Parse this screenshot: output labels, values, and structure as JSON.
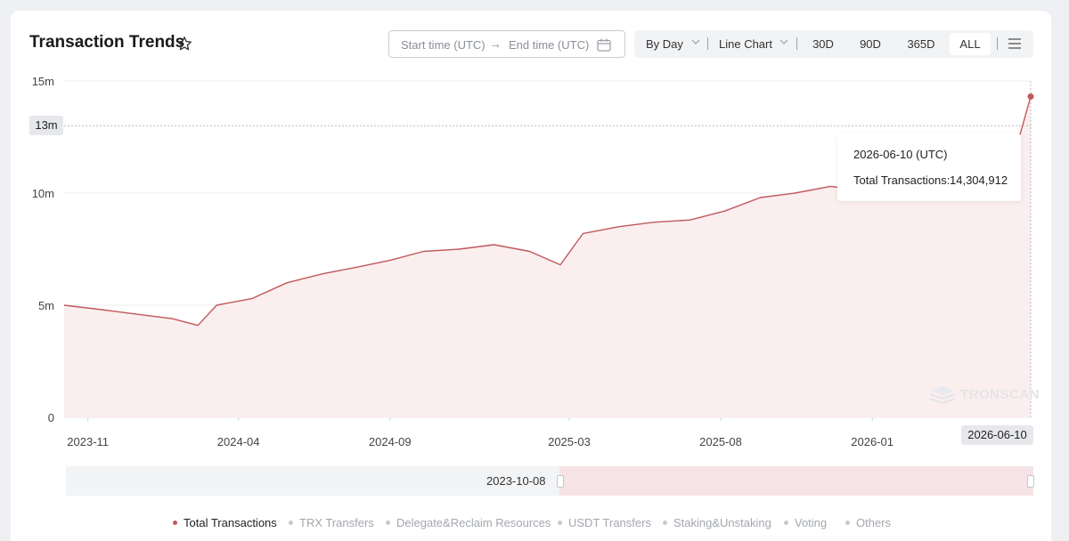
{
  "header": {
    "title": "Transaction Trends",
    "start_placeholder": "Start time (UTC)",
    "end_placeholder": "End time (UTC)"
  },
  "toolbar": {
    "granularity": "By Day",
    "chart_type": "Line Chart",
    "ranges": [
      "30D",
      "90D",
      "365D",
      "ALL"
    ],
    "active_range": "ALL"
  },
  "crosshair": {
    "y_label": "13m",
    "x_label": "2026-06-10"
  },
  "tooltip": {
    "date": "2026-06-10 (UTC)",
    "label": "Total Transactions:",
    "value": "14,304,912"
  },
  "watermark": "TRONSCAN",
  "zoom": {
    "start_label": "2023-10-08"
  },
  "legend": [
    {
      "name": "Total Transactions",
      "active": true
    },
    {
      "name": "TRX Transfers",
      "active": false
    },
    {
      "name": "Delegate&Reclaim Resources",
      "active": false
    },
    {
      "name": "USDT Transfers",
      "active": false
    },
    {
      "name": "Staking&Unstaking",
      "active": false
    },
    {
      "name": "Voting",
      "active": false
    },
    {
      "name": "Others",
      "active": false
    }
  ],
  "colors": {
    "series": "#c0585c",
    "fill": "#fbeeee",
    "grid": "#eceef1"
  },
  "chart_data": {
    "type": "line",
    "title": "Transaction Trends",
    "ylim": [
      0,
      15000000
    ],
    "y_ticks": [
      "0",
      "5m",
      "10m",
      "15m"
    ],
    "x_ticks": [
      "2023-11",
      "2024-04",
      "2024-09",
      "2025-03",
      "2025-08",
      "2026-01"
    ],
    "x_range": [
      "2023-10-08",
      "2026-06-10"
    ],
    "grid": "horizontal",
    "legend_position": "bottom",
    "series": [
      {
        "name": "Total Transactions",
        "points": [
          [
            "2023-10-08",
            5000000
          ],
          [
            "2023-11-15",
            4800000
          ],
          [
            "2023-12-20",
            4600000
          ],
          [
            "2024-01-25",
            4400000
          ],
          [
            "2024-02-20",
            4100000
          ],
          [
            "2024-03-10",
            5000000
          ],
          [
            "2024-04-15",
            5300000
          ],
          [
            "2024-05-20",
            6000000
          ],
          [
            "2024-06-25",
            6400000
          ],
          [
            "2024-07-30",
            6700000
          ],
          [
            "2024-09-01",
            7000000
          ],
          [
            "2024-10-05",
            7400000
          ],
          [
            "2024-11-10",
            7500000
          ],
          [
            "2024-12-15",
            7700000
          ],
          [
            "2025-01-20",
            7400000
          ],
          [
            "2025-02-20",
            6800000
          ],
          [
            "2025-03-15",
            8200000
          ],
          [
            "2025-04-20",
            8500000
          ],
          [
            "2025-05-25",
            8700000
          ],
          [
            "2025-07-01",
            8800000
          ],
          [
            "2025-08-05",
            9200000
          ],
          [
            "2025-09-10",
            9800000
          ],
          [
            "2025-10-15",
            10000000
          ],
          [
            "2025-11-20",
            10300000
          ],
          [
            "2025-12-25",
            10100000
          ],
          [
            "2026-02-01",
            10300000
          ],
          [
            "2026-03-10",
            10000000
          ],
          [
            "2026-04-15",
            10200000
          ],
          [
            "2026-05-20",
            11000000
          ],
          [
            "2026-06-10",
            14304912
          ]
        ]
      }
    ]
  }
}
